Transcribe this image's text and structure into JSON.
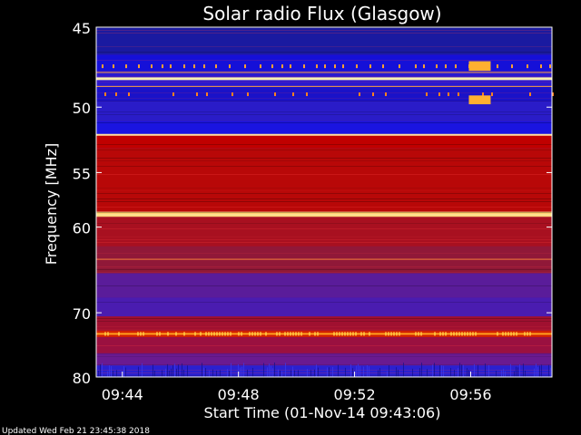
{
  "chart_data": {
    "type": "heatmap",
    "title": "Solar radio Flux (Glasgow)",
    "xlabel": "Start Time (01-Nov-14 09:43:06)",
    "ylabel": "Frequency [MHz]",
    "x_ticks": [
      "09:44",
      "09:48",
      "09:52",
      "09:56"
    ],
    "x_tick_minutes": [
      44,
      48,
      52,
      56
    ],
    "xlim_minutes": [
      43.1,
      58.8
    ],
    "y_ticks": [
      45,
      50,
      55,
      60,
      70,
      80
    ],
    "ylim": [
      45,
      80
    ],
    "y_scale": "reciprocal",
    "grid": false,
    "footer": "Updated Wed Feb 21 23:45:38 2018",
    "bands": [
      {
        "f0": 45.0,
        "f1": 46.6,
        "color": "#1a1aa0"
      },
      {
        "f0": 46.6,
        "f1": 47.6,
        "color": "#1510d8"
      },
      {
        "f0": 47.6,
        "f1": 48.6,
        "color": "#2a18d0"
      },
      {
        "f0": 48.6,
        "f1": 49.6,
        "color": "#1a12c8"
      },
      {
        "f0": 49.6,
        "f1": 51.0,
        "color": "#2a1cc8"
      },
      {
        "f0": 51.0,
        "f1": 52.0,
        "color": "#1a14e0"
      },
      {
        "f0": 52.0,
        "f1": 53.0,
        "color": "#c00000"
      },
      {
        "f0": 53.0,
        "f1": 58.5,
        "color": "#b80808"
      },
      {
        "f0": 58.5,
        "f1": 59.0,
        "color": "#ffd070"
      },
      {
        "f0": 59.0,
        "f1": 62.0,
        "color": "#a81020"
      },
      {
        "f0": 62.0,
        "f1": 65.0,
        "color": "#901838"
      },
      {
        "f0": 65.0,
        "f1": 68.0,
        "color": "#5a1c9a"
      },
      {
        "f0": 68.0,
        "f1": 70.5,
        "color": "#4a1cb0"
      },
      {
        "f0": 70.5,
        "f1": 72.5,
        "color": "#a01030"
      },
      {
        "f0": 72.5,
        "f1": 73.5,
        "color": "#d02000"
      },
      {
        "f0": 73.5,
        "f1": 76.0,
        "color": "#9a1040"
      },
      {
        "f0": 76.0,
        "f1": 78.0,
        "color": "#6a1a90"
      },
      {
        "f0": 78.0,
        "f1": 80.0,
        "color": "#2a20d0"
      }
    ],
    "lines": [
      {
        "f": 48.1,
        "color": "#fff0b0",
        "weight": 3
      },
      {
        "f": 47.7,
        "color": "#ffa040",
        "weight": 1
      },
      {
        "f": 48.6,
        "color": "#ffa040",
        "weight": 1
      },
      {
        "f": 52.0,
        "color": "#ffe0a0",
        "weight": 2
      },
      {
        "f": 58.8,
        "color": "#ffe090",
        "weight": 2
      },
      {
        "f": 63.4,
        "color": "#ff8040",
        "weight": 1
      },
      {
        "f": 73.0,
        "color": "#ffa020",
        "weight": 2
      }
    ],
    "palette_colors": [
      "#000080",
      "#2020d0",
      "#6020a0",
      "#c00000",
      "#ff6000",
      "#ffd060",
      "#ffffc0"
    ]
  }
}
